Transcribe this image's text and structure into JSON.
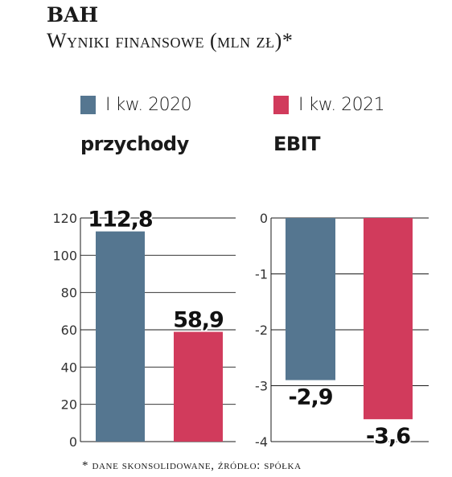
{
  "header": {
    "title": "BAH",
    "subtitle": "Wyniki finansowe (mln zł)*"
  },
  "legend": [
    {
      "label": "I kw. 2020",
      "color": "#557690"
    },
    {
      "label": "I kw. 2021",
      "color": "#d13b5c"
    }
  ],
  "footnote": "* dane skonsolidowane, źródło: spółka",
  "chart_data": [
    {
      "type": "bar",
      "title": "przychody",
      "categories": [
        "I kw. 2020",
        "I kw. 2021"
      ],
      "values": [
        112.8,
        58.9
      ],
      "value_labels": [
        "112,8",
        "58,9"
      ],
      "ylim": [
        0,
        120
      ],
      "yticks": [
        0,
        20,
        40,
        60,
        80,
        100,
        120
      ],
      "ytick_labels": [
        "0",
        "20",
        "40",
        "60",
        "80",
        "100",
        "120"
      ],
      "grid": true
    },
    {
      "type": "bar",
      "title": "EBIT",
      "categories": [
        "I kw. 2020",
        "I kw. 2021"
      ],
      "values": [
        -2.9,
        -3.6
      ],
      "value_labels": [
        "-2,9",
        "-3,6"
      ],
      "ylim": [
        -4,
        0
      ],
      "yticks": [
        0,
        -1,
        -2,
        -3,
        -4
      ],
      "ytick_labels": [
        "0",
        "-1",
        "-2",
        "-3",
        "-4"
      ],
      "grid": true
    }
  ]
}
